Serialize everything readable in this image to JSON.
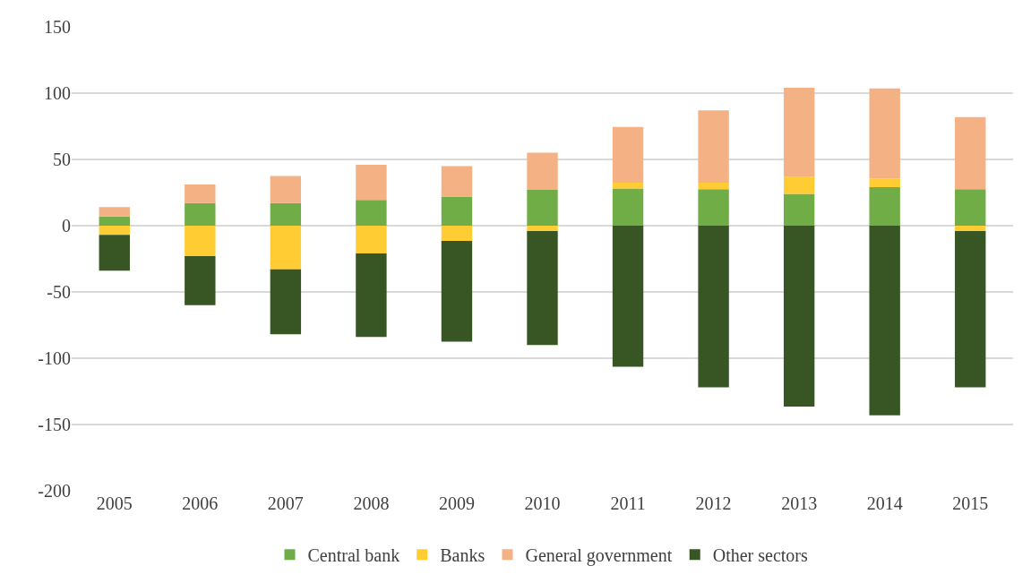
{
  "chart_data": {
    "type": "bar",
    "stacked": true,
    "categories": [
      "2005",
      "2006",
      "2007",
      "2008",
      "2009",
      "2010",
      "2011",
      "2012",
      "2013",
      "2014",
      "2015"
    ],
    "series": [
      {
        "name": "Central bank",
        "color": "#70ad47",
        "values": [
          7,
          17,
          17,
          19.5,
          22,
          27,
          28,
          27.5,
          24,
          29,
          27.5
        ]
      },
      {
        "name": "Banks",
        "color": "#ffcc33",
        "values": [
          -7,
          -23,
          -33,
          -21,
          -11.5,
          -4,
          4.5,
          5,
          13,
          6.5,
          -4
        ]
      },
      {
        "name": "General government",
        "color": "#f4b183",
        "values": [
          7,
          14,
          20.5,
          26.5,
          23,
          28,
          42,
          54.5,
          67,
          68,
          54.5
        ]
      },
      {
        "name": "Other sectors",
        "color": "#375623",
        "values": [
          -27,
          -37,
          -49,
          -63,
          -76,
          -86,
          -106.5,
          -122,
          -136.5,
          -143,
          -118
        ]
      }
    ],
    "ylim": [
      -200,
      150
    ],
    "yticks": [
      -200,
      -150,
      -100,
      -50,
      0,
      50,
      100,
      150
    ],
    "grid": "y",
    "legend": "bottom"
  }
}
